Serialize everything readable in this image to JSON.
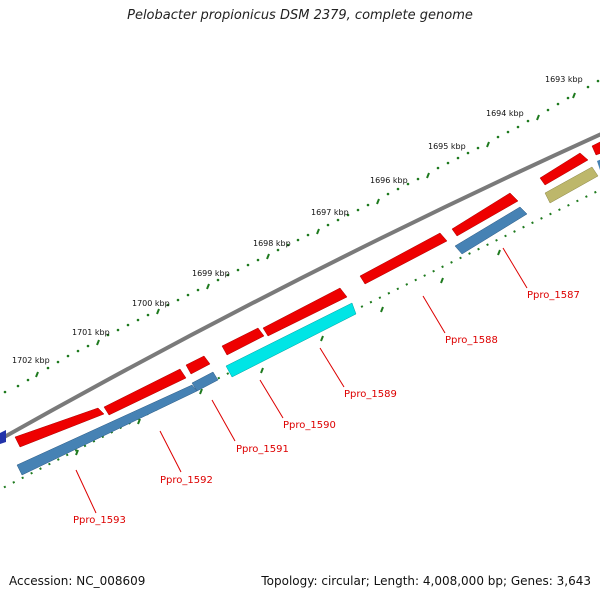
{
  "title": "Pelobacter propionicus DSM 2379, complete genome",
  "footer": {
    "accession": "Accession: NC_008609",
    "summary": "Topology: circular; Length: 4,008,000 bp; Genes: 3,643"
  },
  "ruler": {
    "unit": "kbp",
    "labels": [
      "1693 kbp",
      "1694 kbp",
      "1695 kbp",
      "1696 kbp",
      "1697 kbp",
      "1698 kbp",
      "1699 kbp",
      "1700 kbp",
      "1701 kbp",
      "1702 kbp"
    ]
  },
  "genes": [
    "Ppro_1587",
    "Ppro_1588",
    "Ppro_1589",
    "Ppro_1590",
    "Ppro_1591",
    "Ppro_1592",
    "Ppro_1593"
  ],
  "colors": {
    "backbone": "#808080",
    "cds_forward": "#ee0000",
    "cds_reverse": "#4682b4",
    "highlight": "#00e5e5",
    "other": "#bdb76b",
    "tick": "#1e7a1e",
    "label": "#dd0000"
  }
}
